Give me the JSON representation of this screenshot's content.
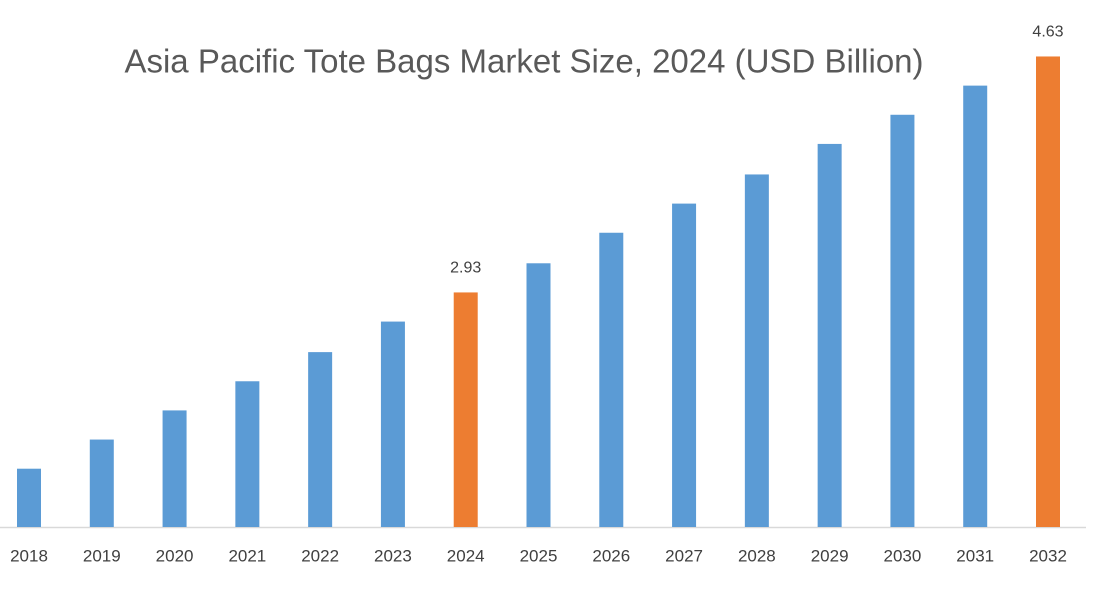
{
  "chart_data": {
    "type": "bar",
    "title": "Asia Pacific Tote Bags Market Size, 2024 (USD Billion)",
    "categories": [
      "2018",
      "2019",
      "2020",
      "2021",
      "2022",
      "2023",
      "2024",
      "2025",
      "2026",
      "2027",
      "2028",
      "2029",
      "2030",
      "2031",
      "2032"
    ],
    "values": [
      1.66,
      1.87,
      2.08,
      2.29,
      2.5,
      2.72,
      2.93,
      3.14,
      3.36,
      3.57,
      3.78,
      4.0,
      4.21,
      4.42,
      4.63
    ],
    "value_labels": [
      null,
      null,
      null,
      null,
      null,
      null,
      "2.93",
      null,
      null,
      null,
      null,
      null,
      null,
      null,
      "4.63"
    ],
    "colors": [
      "#5b9bd5",
      "#5b9bd5",
      "#5b9bd5",
      "#5b9bd5",
      "#5b9bd5",
      "#5b9bd5",
      "#ed7d31",
      "#5b9bd5",
      "#5b9bd5",
      "#5b9bd5",
      "#5b9bd5",
      "#5b9bd5",
      "#5b9bd5",
      "#5b9bd5",
      "#ed7d31"
    ],
    "ylim": [
      1.24,
      4.9
    ]
  }
}
